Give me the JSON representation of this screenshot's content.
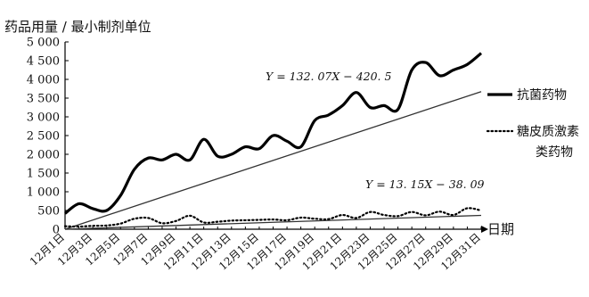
{
  "chart_data": {
    "type": "line",
    "ylabel": "药品用量 / 最小制剂单位",
    "xlabel": "日期",
    "ylim": [
      0,
      5000
    ],
    "yticks": [
      0,
      500,
      1000,
      1500,
      2000,
      2500,
      3000,
      3500,
      4000,
      4500,
      5000
    ],
    "ytick_labels": [
      "0",
      "500",
      "1 000",
      "1 500",
      "2 000",
      "2 500",
      "3 000",
      "3 500",
      "4 000",
      "4 500",
      "5 000"
    ],
    "x_labeled": [
      "12月1日",
      "12月3日",
      "12月5日",
      "12月7日",
      "12月9日",
      "12月11日",
      "12月13日",
      "12月15日",
      "12月17日",
      "12月19日",
      "12月21日",
      "12月23日",
      "12月25日",
      "12月27日",
      "12月29日",
      "12月31日"
    ],
    "x": [
      1,
      2,
      3,
      4,
      5,
      6,
      7,
      8,
      9,
      10,
      11,
      12,
      13,
      14,
      15,
      16,
      17,
      18,
      19,
      20,
      21,
      22,
      23,
      24,
      25,
      26,
      27,
      28,
      29,
      30,
      31
    ],
    "grid": false,
    "legend_position": "right",
    "series": [
      {
        "name": "抗菌药物",
        "style": "solid-thick",
        "values": [
          420,
          680,
          550,
          500,
          900,
          1600,
          1900,
          1850,
          2000,
          1850,
          2400,
          1950,
          2000,
          2200,
          2150,
          2500,
          2350,
          2200,
          2900,
          3050,
          3300,
          3650,
          3250,
          3300,
          3200,
          4250,
          4450,
          4100,
          4250,
          4400,
          4700
        ]
      },
      {
        "name": "糖皮质激素类药物",
        "style": "dotted",
        "values": [
          80,
          70,
          90,
          100,
          150,
          280,
          300,
          160,
          220,
          360,
          180,
          200,
          230,
          240,
          250,
          260,
          240,
          310,
          280,
          270,
          380,
          300,
          460,
          380,
          350,
          460,
          370,
          470,
          380,
          560,
          500
        ]
      }
    ],
    "trendlines": [
      {
        "equation": "Y = 132. 07X − 420. 5",
        "slope": 132.07,
        "intercept": -420.5,
        "x_range": [
          1,
          31
        ]
      },
      {
        "equation": "Y = 13. 15X − 38. 09",
        "slope": 13.15,
        "intercept": -38.09,
        "x_range": [
          1,
          31
        ]
      }
    ],
    "colors": {
      "line": "#000000",
      "trend": "#333333"
    }
  }
}
